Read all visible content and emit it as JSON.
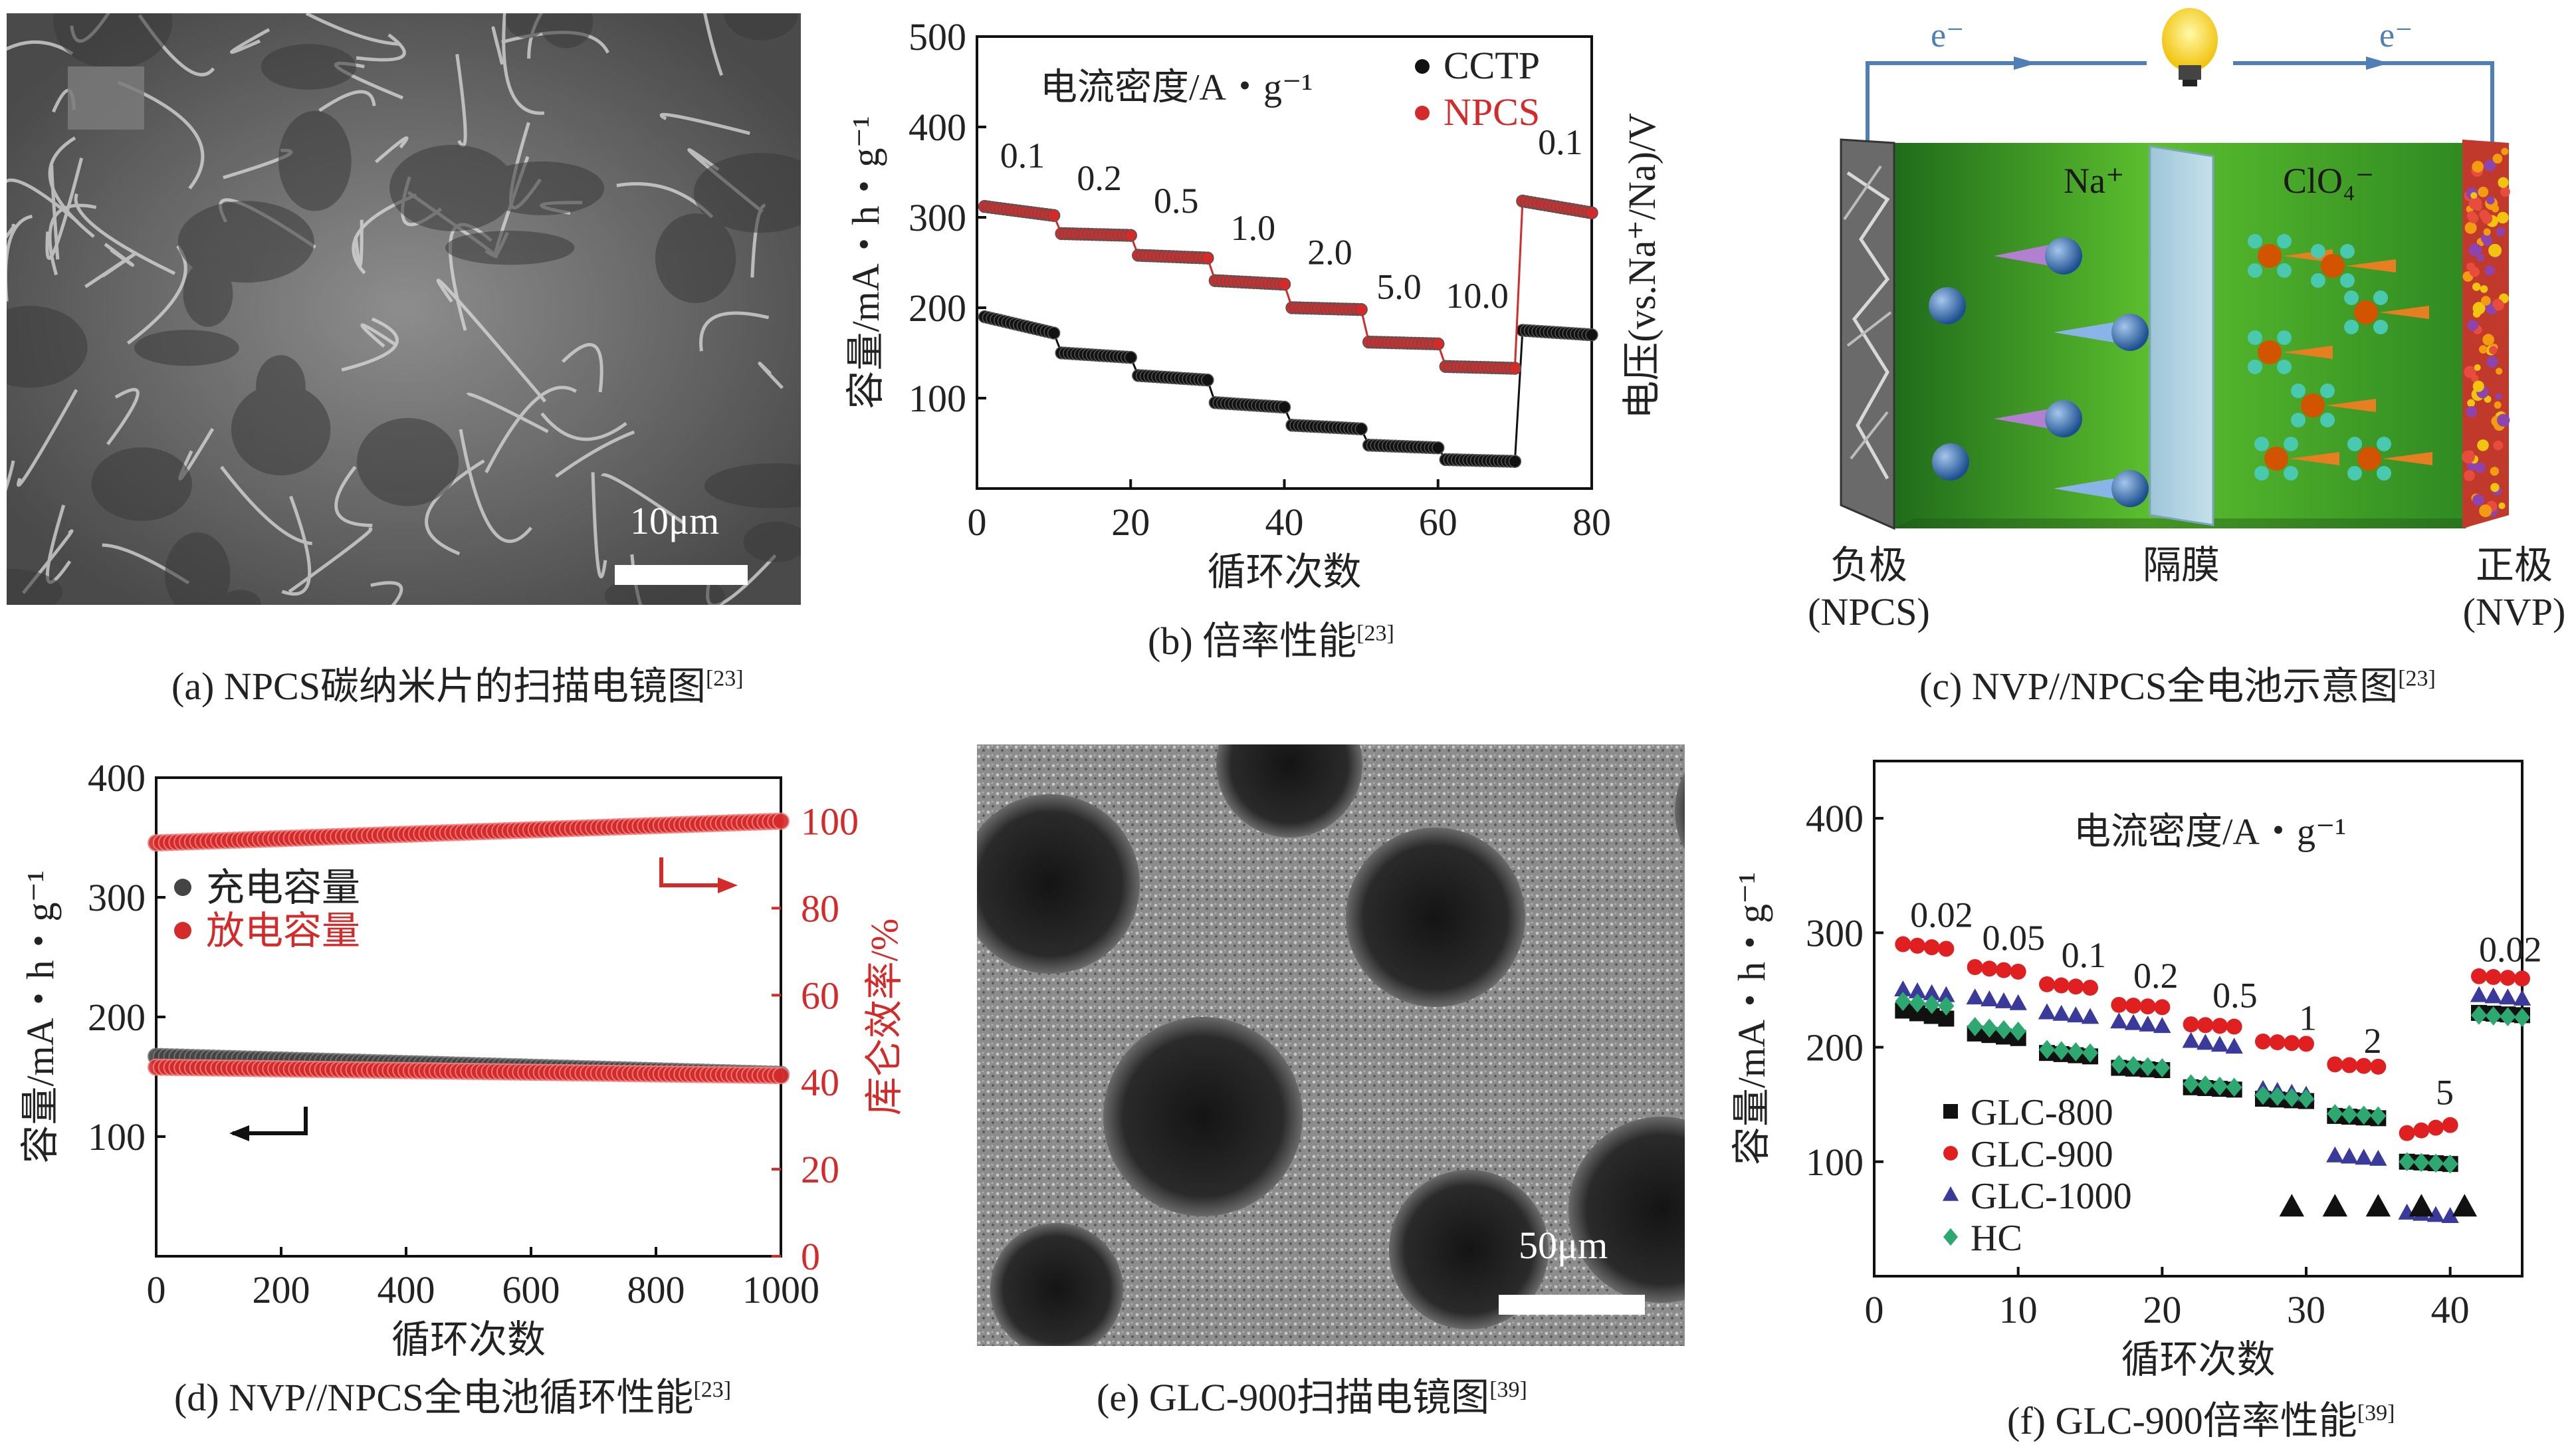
{
  "figures": {
    "a": {
      "caption": "(a) NPCS碳纳米片的扫描电镜图",
      "ref": "[23]",
      "scale_label": "10μm"
    },
    "b": {
      "caption": "(b) 倍率性能",
      "ref": "[23]",
      "annotation": "电流密度/A・g⁻¹",
      "rate_labels": [
        "0.1",
        "0.2",
        "0.5",
        "1.0",
        "2.0",
        "5.0",
        "10.0",
        "0.1"
      ],
      "y2label": "电压(vs.Na⁺/Na)/V"
    },
    "c": {
      "caption": "(c) NVP//NPCS全电池示意图",
      "ref": "[23]",
      "electron_left": "e⁻",
      "electron_right": "e⁻",
      "ion_na": "Na⁺",
      "ion_clo4": "ClO₄⁻",
      "anode_label": "负极",
      "anode_sub": "(NPCS)",
      "separator_label": "隔膜",
      "cathode_label": "正极",
      "cathode_sub": "(NVP)"
    },
    "d": {
      "caption": "(d) NVP//NPCS全电池循环性能",
      "ref": "[23]"
    },
    "e": {
      "caption": "(e) GLC-900扫描电镜图",
      "ref": "[39]",
      "scale_label": "50μm"
    },
    "f": {
      "caption": "(f) GLC-900倍率性能",
      "ref": "[39]",
      "annotation": "电流密度/A・g⁻¹",
      "rate_labels": [
        "0.02",
        "0.05",
        "0.1",
        "0.2",
        "0.5",
        "1",
        "2",
        "5",
        "0.02"
      ]
    }
  },
  "chart_data": [
    {
      "id": "b",
      "type": "scatter",
      "xlabel": "循环次数",
      "ylabel": "容量/mA・h・g⁻¹",
      "xlim": [
        0,
        80
      ],
      "ylim": [
        0,
        500
      ],
      "xticks": [
        0,
        20,
        40,
        60,
        80
      ],
      "yticks": [
        100,
        200,
        300,
        400,
        500
      ],
      "legend_position": "top-right",
      "series": [
        {
          "name": "CCTP",
          "color": "#111111",
          "segments": [
            [
              1,
              10,
              190,
              172
            ],
            [
              11,
              20,
              150,
              145
            ],
            [
              21,
              30,
              125,
              120
            ],
            [
              31,
              40,
              95,
              90
            ],
            [
              41,
              50,
              70,
              66
            ],
            [
              51,
              60,
              48,
              45
            ],
            [
              61,
              70,
              32,
              30
            ],
            [
              71,
              80,
              175,
              170
            ]
          ]
        },
        {
          "name": "NPCS",
          "color": "#d42a2a",
          "segments": [
            [
              1,
              10,
              312,
              302
            ],
            [
              11,
              20,
              282,
              280
            ],
            [
              21,
              30,
              258,
              255
            ],
            [
              31,
              40,
              230,
              226
            ],
            [
              41,
              50,
              200,
              198
            ],
            [
              51,
              60,
              162,
              160
            ],
            [
              61,
              70,
              135,
              133
            ],
            [
              71,
              80,
              318,
              305
            ]
          ]
        }
      ]
    },
    {
      "id": "d",
      "type": "scatter",
      "xlabel": "循环次数",
      "ylabel": "容量/mA・h・g⁻¹",
      "y2label": "库仑效率/%",
      "xlim": [
        0,
        1000
      ],
      "ylim": [
        0,
        400
      ],
      "y2lim": [
        0,
        110
      ],
      "xticks": [
        0,
        200,
        400,
        600,
        800,
        1000
      ],
      "yticks": [
        100,
        200,
        300,
        400
      ],
      "y2ticks": [
        0,
        20,
        40,
        60,
        80,
        100
      ],
      "legend_position": "top-left",
      "series": [
        {
          "name": "充电容量",
          "color": "#444444",
          "axis": "left",
          "start": 167,
          "end": 152
        },
        {
          "name": "放电容量",
          "color": "#d42a2a",
          "axis": "left",
          "start": 158,
          "end": 151
        },
        {
          "name": "",
          "color": "#d42a2a",
          "axis": "right",
          "start": 95,
          "end": 100
        }
      ]
    },
    {
      "id": "f",
      "type": "scatter",
      "xlabel": "循环次数",
      "ylabel": "容量/mA・h・g⁻¹",
      "xlim": [
        0,
        45
      ],
      "ylim": [
        0,
        450
      ],
      "xticks": [
        0,
        10,
        20,
        30,
        40
      ],
      "yticks": [
        100,
        200,
        300,
        400
      ],
      "legend_position": "bottom-left",
      "series": [
        {
          "name": "GLC-800",
          "color": "#111111",
          "marker": "square",
          "segments": [
            [
              2,
              5,
              232,
              225
            ],
            [
              7,
              10,
              212,
              208
            ],
            [
              12,
              15,
              195,
              192
            ],
            [
              17,
              20,
              182,
              180
            ],
            [
              22,
              25,
              165,
              163
            ],
            [
              27,
              30,
              155,
              153
            ],
            [
              32,
              35,
              140,
              138
            ],
            [
              37,
              40,
              100,
              98
            ],
            [
              42,
              45,
              230,
              228
            ]
          ]
        },
        {
          "name": "GLC-900",
          "color": "#e02020",
          "marker": "circle",
          "segments": [
            [
              2,
              5,
              290,
              286
            ],
            [
              7,
              10,
              270,
              266
            ],
            [
              12,
              15,
              255,
              252
            ],
            [
              17,
              20,
              237,
              235
            ],
            [
              22,
              25,
              220,
              218
            ],
            [
              27,
              30,
              205,
              203
            ],
            [
              32,
              35,
              185,
              183
            ],
            [
              37,
              40,
              125,
              132
            ],
            [
              42,
              45,
              262,
              260
            ]
          ]
        },
        {
          "name": "GLC-1000",
          "color": "#3a3a9a",
          "marker": "triangle",
          "segments": [
            [
              2,
              5,
              250,
              245
            ],
            [
              7,
              10,
              243,
              238
            ],
            [
              12,
              15,
              230,
              226
            ],
            [
              17,
              20,
              222,
              218
            ],
            [
              22,
              25,
              205,
              200
            ],
            [
              27,
              30,
              163,
              158
            ],
            [
              32,
              35,
              105,
              102
            ],
            [
              37,
              40,
              55,
              52
            ],
            [
              42,
              45,
              245,
              242
            ]
          ]
        },
        {
          "name": "HC",
          "color": "#2ca870",
          "marker": "diamond",
          "segments": [
            [
              2,
              5,
              240,
              236
            ],
            [
              7,
              10,
              218,
              214
            ],
            [
              12,
              15,
              198,
              195
            ],
            [
              17,
              20,
              185,
              182
            ],
            [
              22,
              25,
              168,
              165
            ],
            [
              27,
              30,
              158,
              155
            ],
            [
              32,
              35,
              142,
              140
            ],
            [
              37,
              40,
              100,
              98
            ],
            [
              42,
              45,
              228,
              226
            ]
          ]
        }
      ],
      "black_triangles": {
        "x": [
          29,
          32,
          35,
          38,
          41
        ],
        "y": 60
      }
    }
  ]
}
